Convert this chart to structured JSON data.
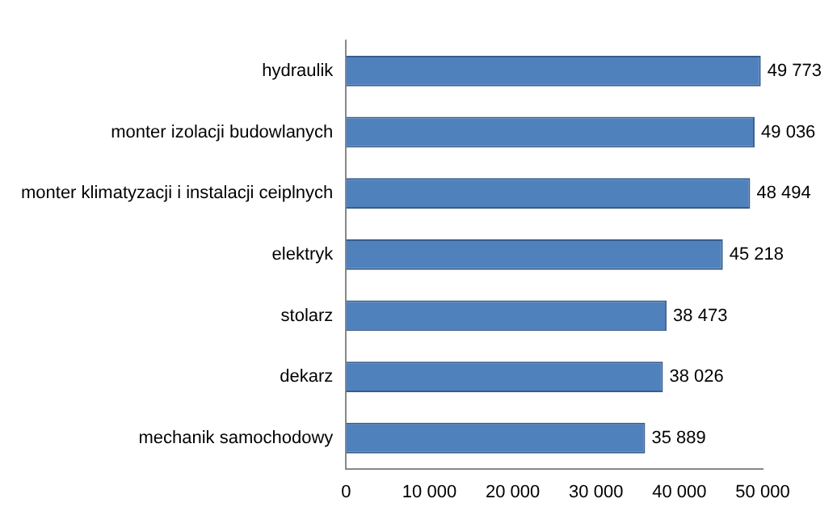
{
  "chart_data": {
    "type": "bar",
    "orientation": "horizontal",
    "categories": [
      "hydraulik",
      "monter izolacji budowlanych",
      "monter klimatyzacji i instalacji ceiplnych",
      "elektryk",
      "stolarz",
      "dekarz",
      "mechanik samochodowy"
    ],
    "values": [
      49773,
      49036,
      48494,
      45218,
      38473,
      38026,
      35889
    ],
    "value_labels": [
      "49 773",
      "49 036",
      "48 494",
      "45 218",
      "38 473",
      "38 026",
      "35 889"
    ],
    "color": "#4f81bd",
    "xlim": [
      0,
      50000
    ],
    "xticks": [
      0,
      {
        "value": 10000,
        "label": "10 000"
      },
      {
        "value": 20000,
        "label": "20 000"
      },
      {
        "value": 30000,
        "label": "30 000"
      },
      {
        "value": 40000,
        "label": "40 000"
      },
      {
        "value": 50000,
        "label": "50 000"
      }
    ],
    "grid": false,
    "legend": false
  }
}
